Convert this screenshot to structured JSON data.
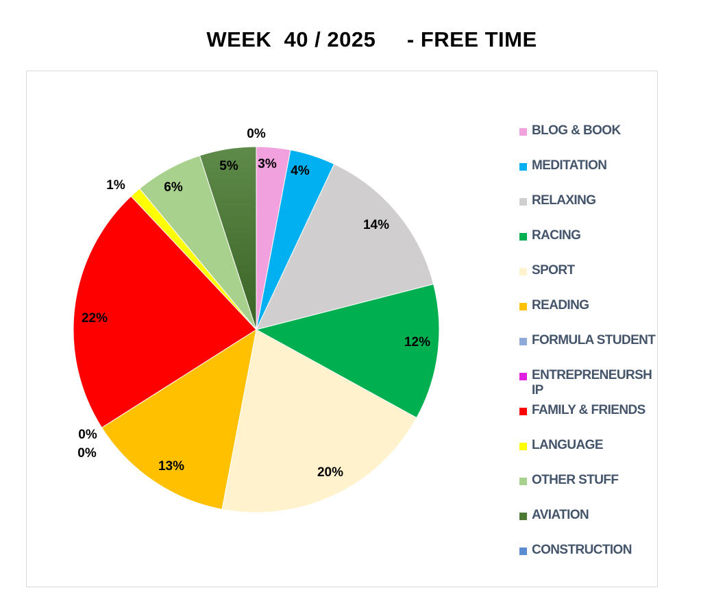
{
  "chart_data": {
    "type": "pie",
    "title": "WEEK  40 / 2025     - FREE TIME",
    "legend_position": "right",
    "slices": [
      {
        "label": "BLOG & BOOK",
        "value": 3,
        "value_label": "3%",
        "color": "#f0a1de"
      },
      {
        "label": "MEDITATION",
        "value": 4,
        "value_label": "4%",
        "color": "#00b0f0"
      },
      {
        "label": "RELAXING",
        "value": 14,
        "value_label": "14%",
        "color": "#d0cece"
      },
      {
        "label": "RACING",
        "value": 12,
        "value_label": "12%",
        "color": "#00b050"
      },
      {
        "label": "SPORT",
        "value": 20,
        "value_label": "20%",
        "color": "#fff2cc"
      },
      {
        "label": "READING",
        "value": 13,
        "value_label": "13%",
        "color": "#ffc000"
      },
      {
        "label": "FORMULA STUDENT",
        "value": 0,
        "value_label": "0%",
        "color": "#8eaadb"
      },
      {
        "label": "ENTREPRENEURSH IP",
        "value": 0,
        "value_label": "0%",
        "color": "#e020e0"
      },
      {
        "label": "FAMILY & FRIENDS",
        "value": 22,
        "value_label": "22%",
        "color": "#ff0000"
      },
      {
        "label": "LANGUAGE",
        "value": 1,
        "value_label": "1%",
        "color": "#ffff00"
      },
      {
        "label": "OTHER STUFF",
        "value": 6,
        "value_label": "6%",
        "color": "#a9d18e"
      },
      {
        "label": "AVIATION",
        "value": 5,
        "value_label": "5%",
        "color": "#4c7a34"
      },
      {
        "label": "CONSTRUCTION",
        "value": 0,
        "value_label": "0%",
        "color": "#5b8bd0"
      }
    ]
  }
}
